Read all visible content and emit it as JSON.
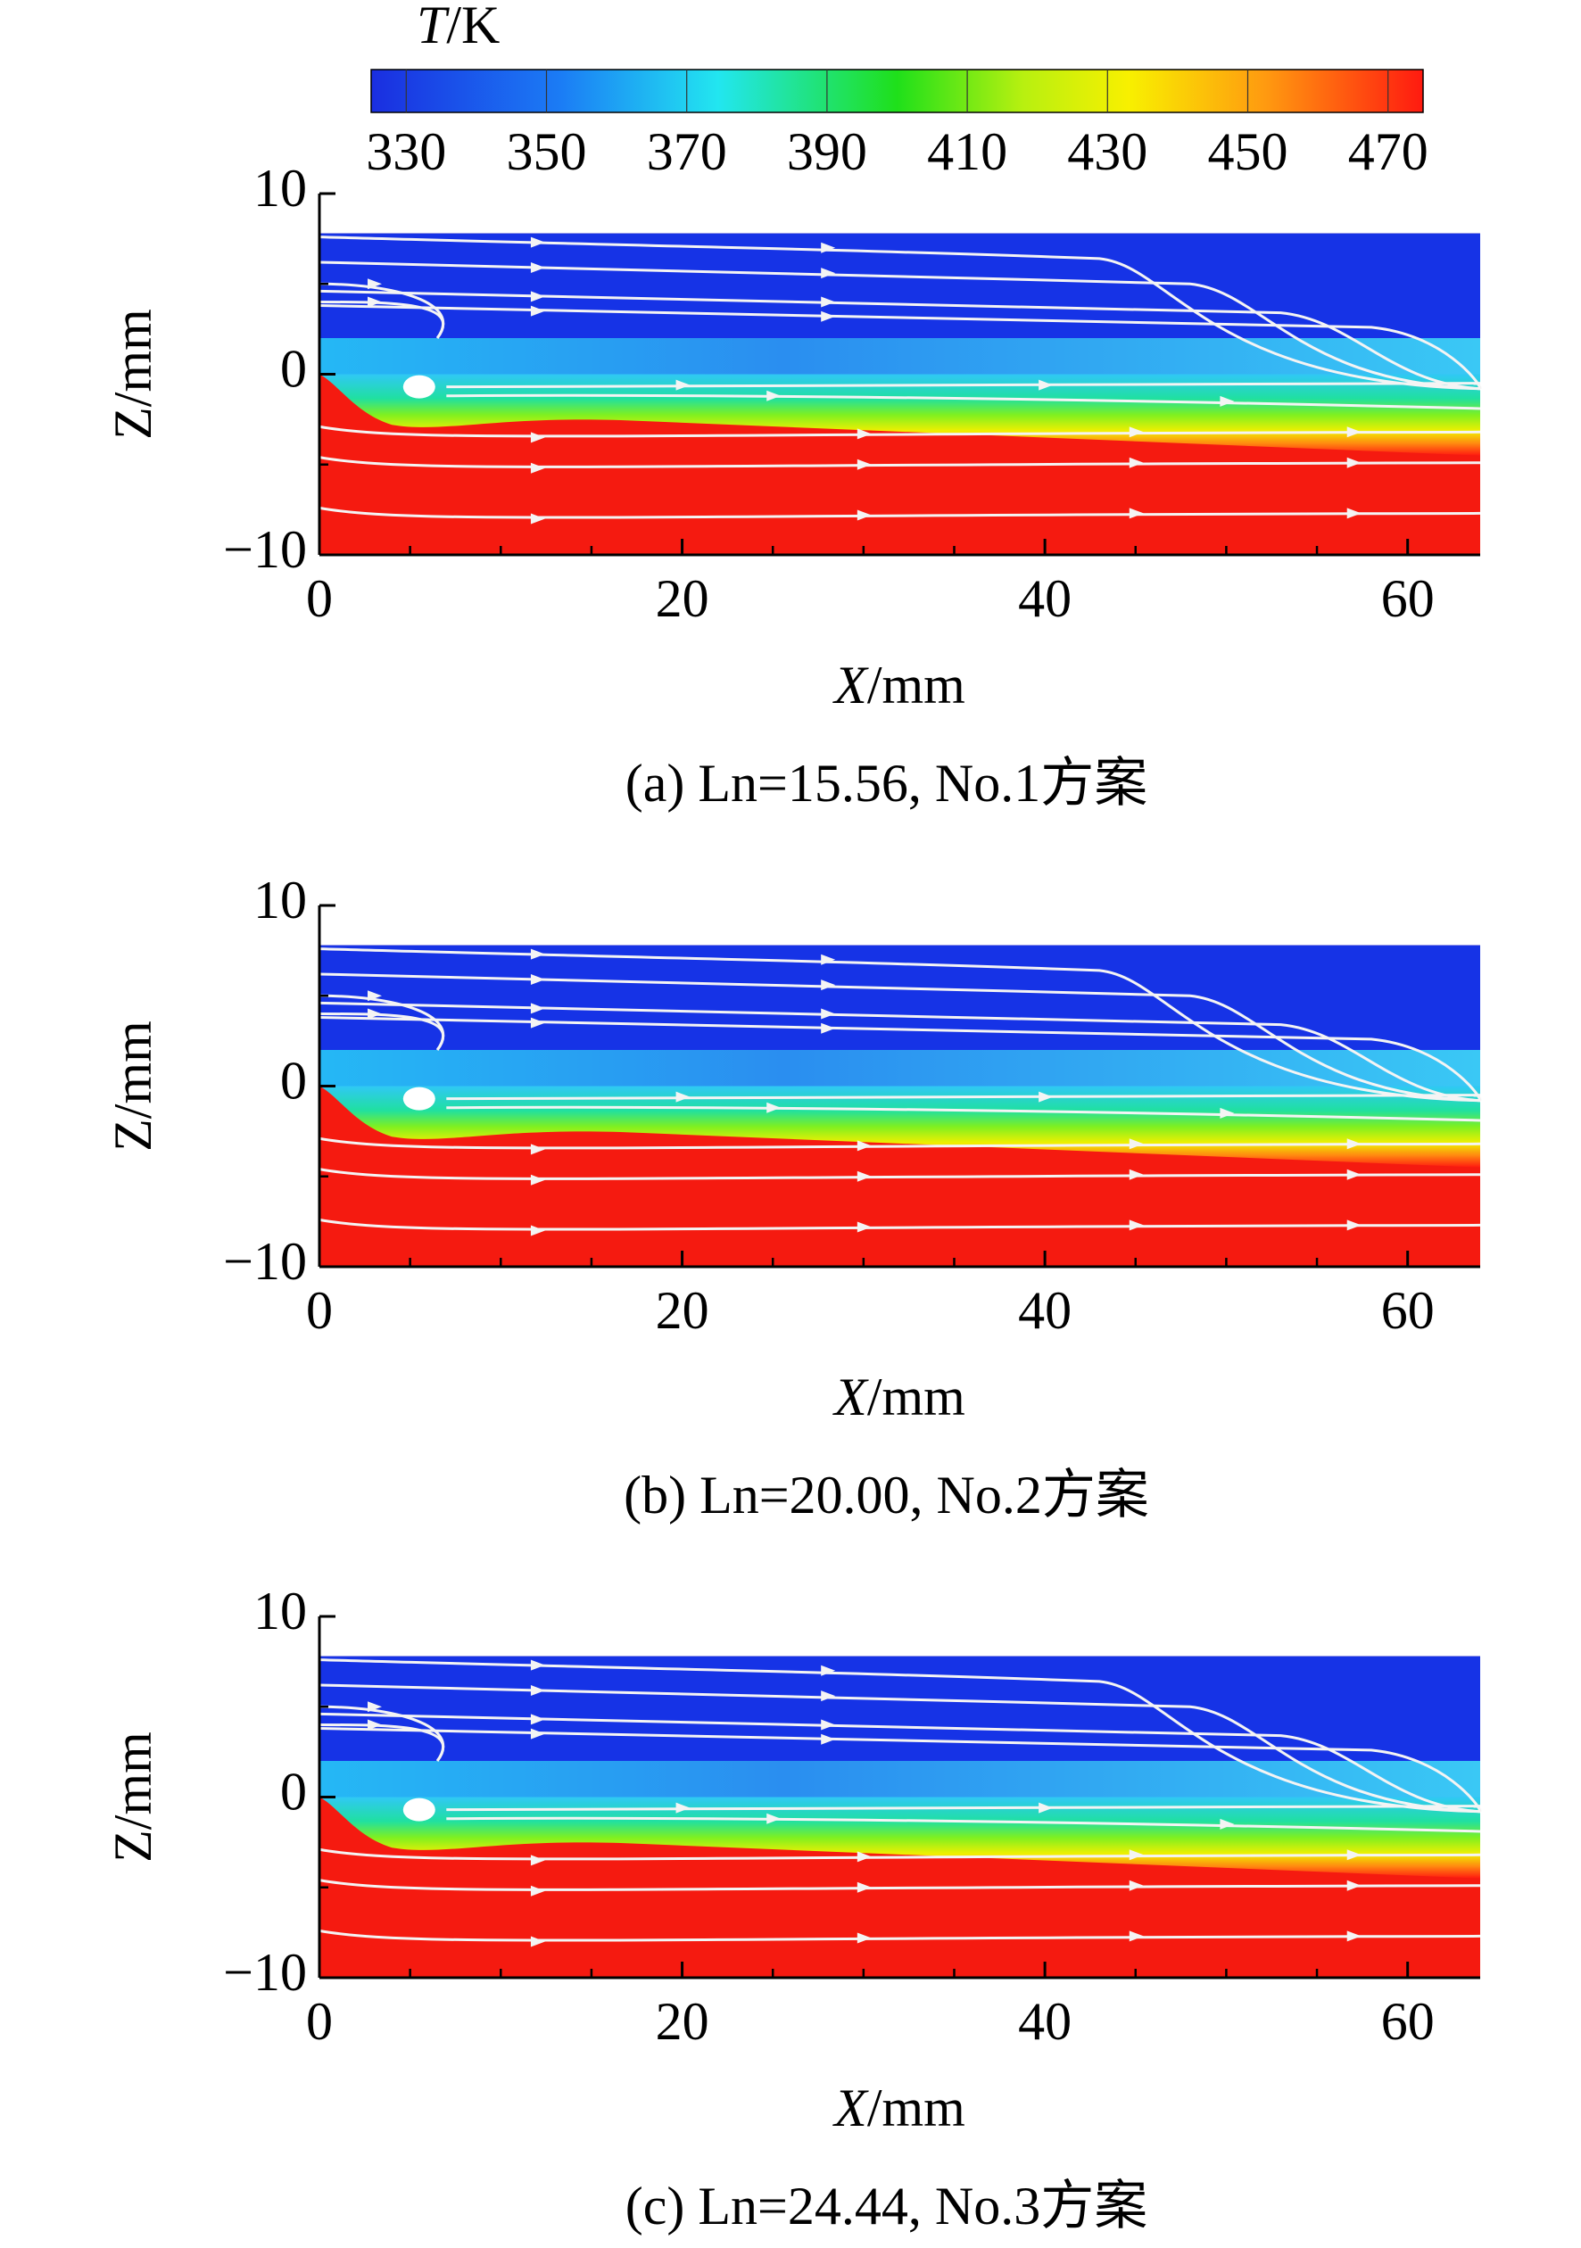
{
  "colorbar": {
    "title": "T/K",
    "lim": [
      325,
      475
    ],
    "ticks": [
      330,
      350,
      370,
      390,
      410,
      430,
      450,
      470
    ]
  },
  "chart_data": [
    {
      "type": "contour",
      "xlabel": "X/mm",
      "ylabel": "Z/mm",
      "caption": "(a) Ln=15.56, No.1方案",
      "xlim": [
        0,
        64
      ],
      "ylim": [
        -10,
        10
      ],
      "xticks": [
        0,
        20,
        40,
        60
      ],
      "xminorticks": [
        5,
        10,
        15,
        25,
        30,
        35,
        45,
        50,
        55
      ],
      "yticks": [
        10,
        0,
        {
          "value": -10,
          "label": "−10"
        }
      ],
      "yminorticks": [
        5,
        -5
      ]
    },
    {
      "type": "contour",
      "xlabel": "X/mm",
      "ylabel": "Z/mm",
      "caption": "(b) Ln=20.00, No.2方案",
      "xlim": [
        0,
        64
      ],
      "ylim": [
        -10,
        10
      ],
      "xticks": [
        0,
        20,
        40,
        60
      ],
      "xminorticks": [
        5,
        10,
        15,
        25,
        30,
        35,
        45,
        50,
        55
      ],
      "yticks": [
        10,
        0,
        {
          "value": -10,
          "label": "−10"
        }
      ],
      "yminorticks": [
        5,
        -5
      ]
    },
    {
      "type": "contour",
      "xlabel": "X/mm",
      "ylabel": "Z/mm",
      "caption": "(c) Ln=24.44, No.3方案",
      "xlim": [
        0,
        64
      ],
      "ylim": [
        -10,
        10
      ],
      "xticks": [
        0,
        20,
        40,
        60
      ],
      "xminorticks": [
        5,
        10,
        15,
        25,
        30,
        35,
        45,
        50,
        55
      ],
      "yticks": [
        10,
        0,
        {
          "value": -10,
          "label": "−10"
        }
      ],
      "yminorticks": [
        5,
        -5
      ]
    }
  ]
}
